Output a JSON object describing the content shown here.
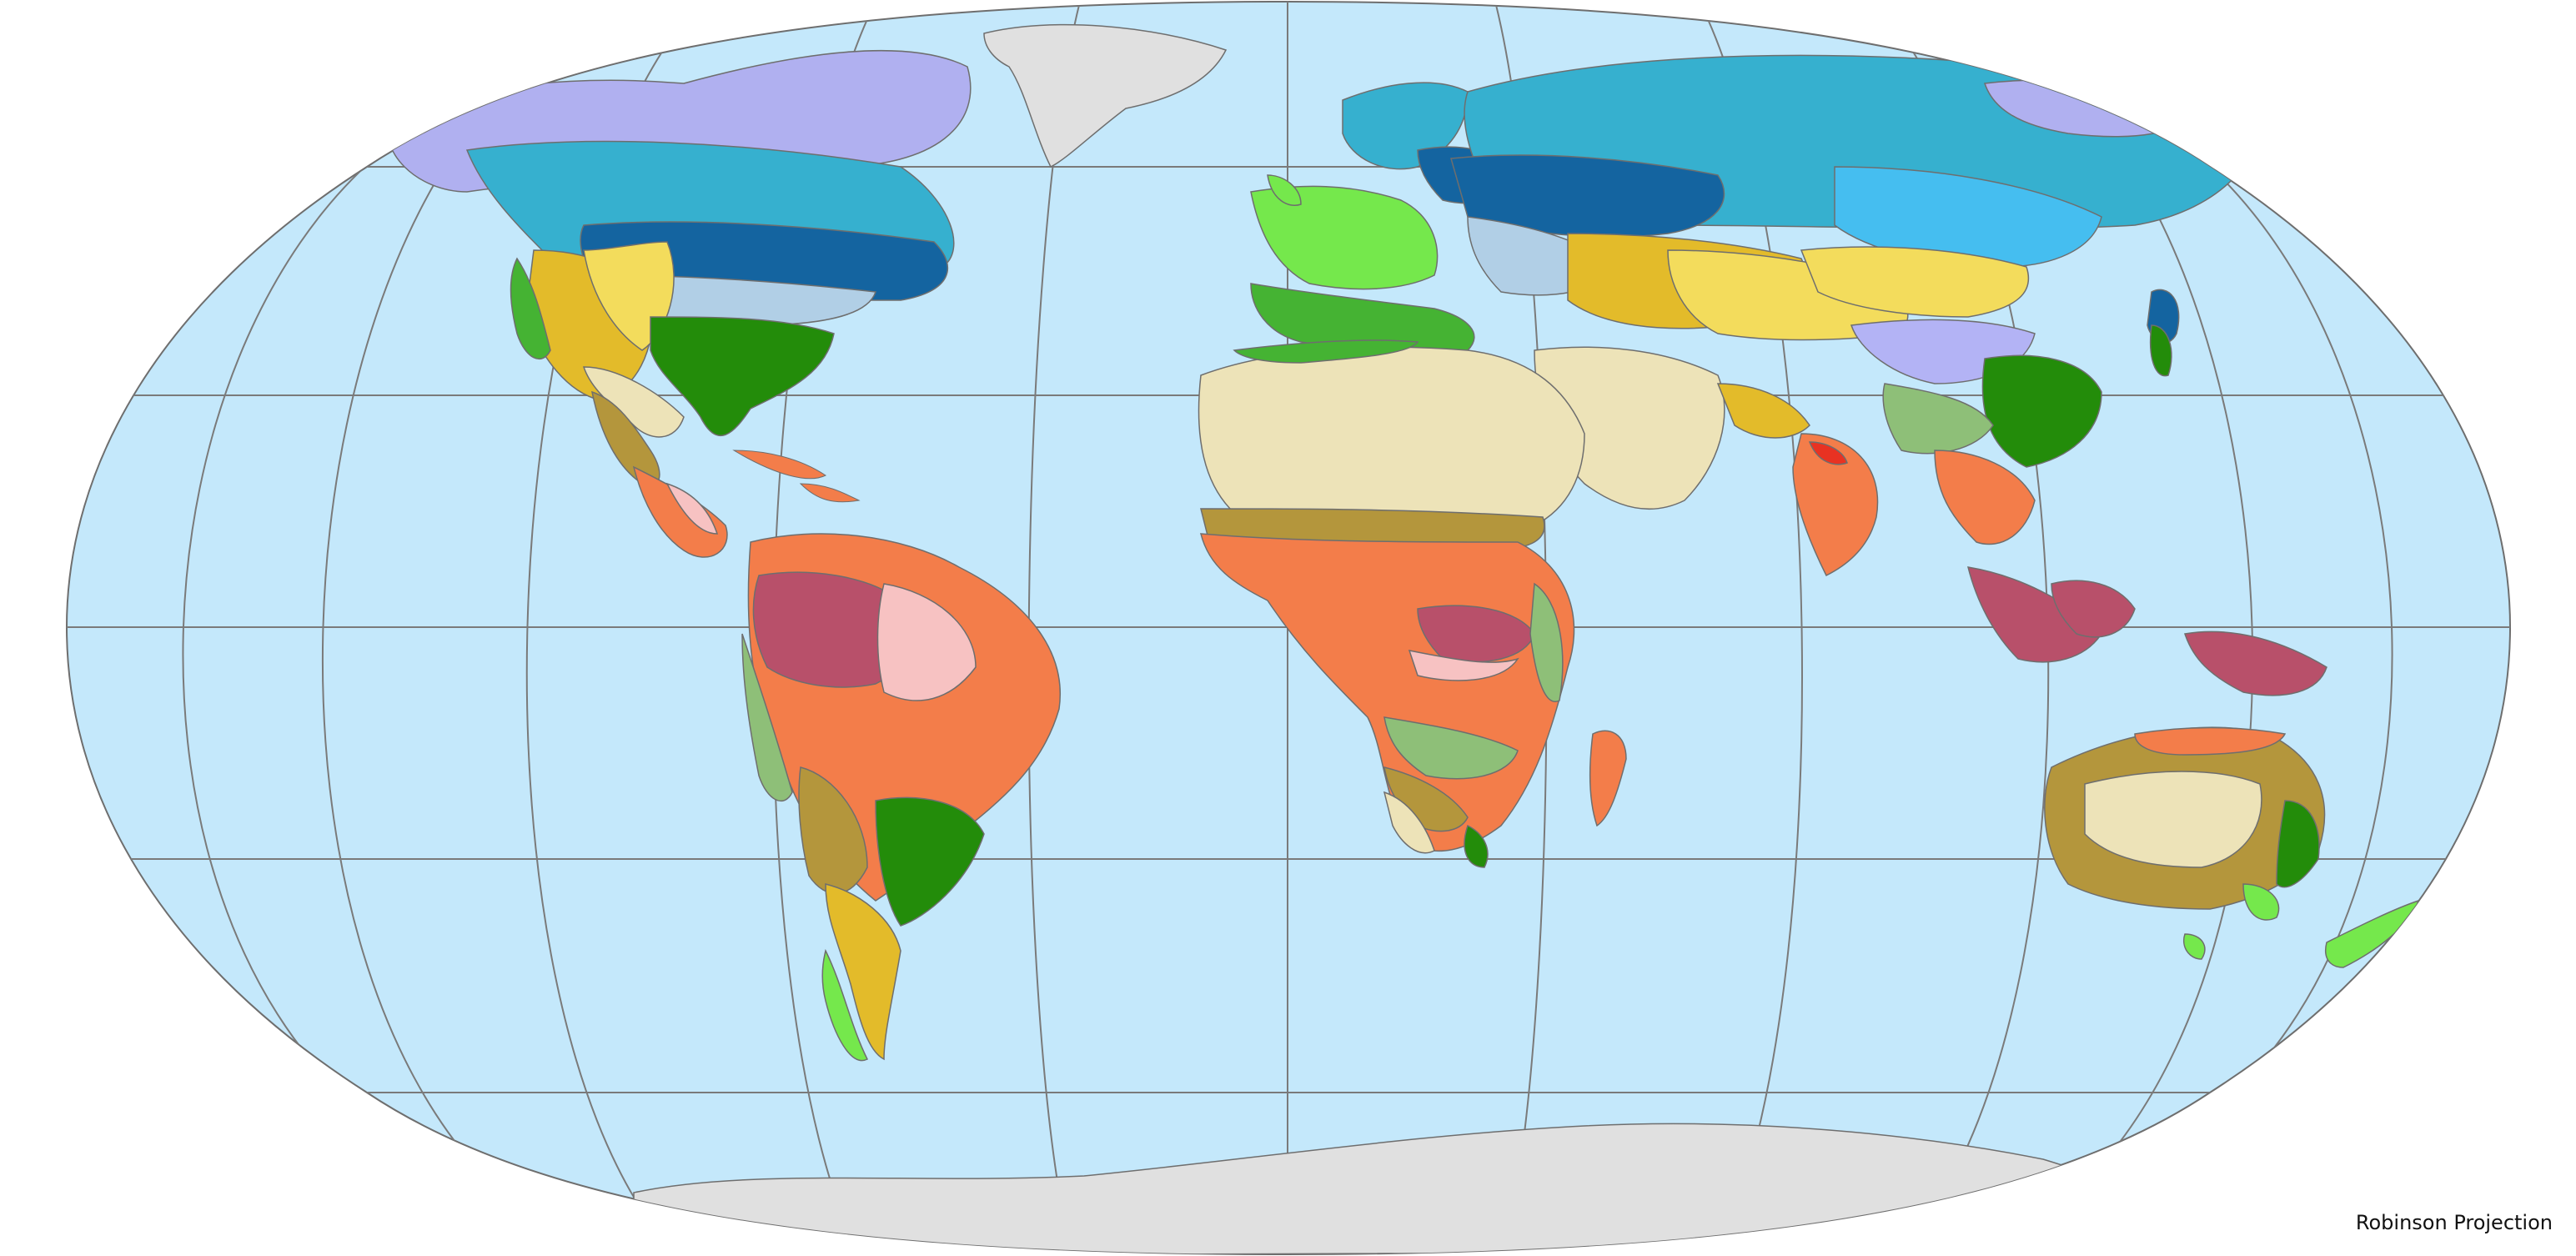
{
  "map": {
    "projection_label": "Robinson Projection",
    "colors": {
      "ocean": "#c4e8fb",
      "outline": "#6e6e6e",
      "graticule": "#7a7a7a",
      "ice": "#e0e0e0",
      "tropical_rainforest": "#b8506a",
      "tropical_monsoon": "#f7c2c2",
      "tropical_savanna": "#f37d4a",
      "hot_desert": "#ede3b8",
      "hot_steppe": "#b4963c",
      "cold_desert": "#f3dc5c",
      "cold_steppe": "#e3bb2a",
      "humid_subtropical": "#238c0a",
      "temperate_oceanic": "#75e84c",
      "mediterranean": "#45b333",
      "subtropical_highland": "#8ebf78",
      "humid_continental": "#b1cfe6",
      "hemiboreal": "#1464a0",
      "subarctic": "#36b0cf",
      "continental_dry_winter": "#45bef0",
      "monsoon_continental": "#b3b3f5",
      "tundra": "#b0b0f0",
      "highland_cold": "#7878e6",
      "tropical_dry": "#e83222"
    }
  }
}
